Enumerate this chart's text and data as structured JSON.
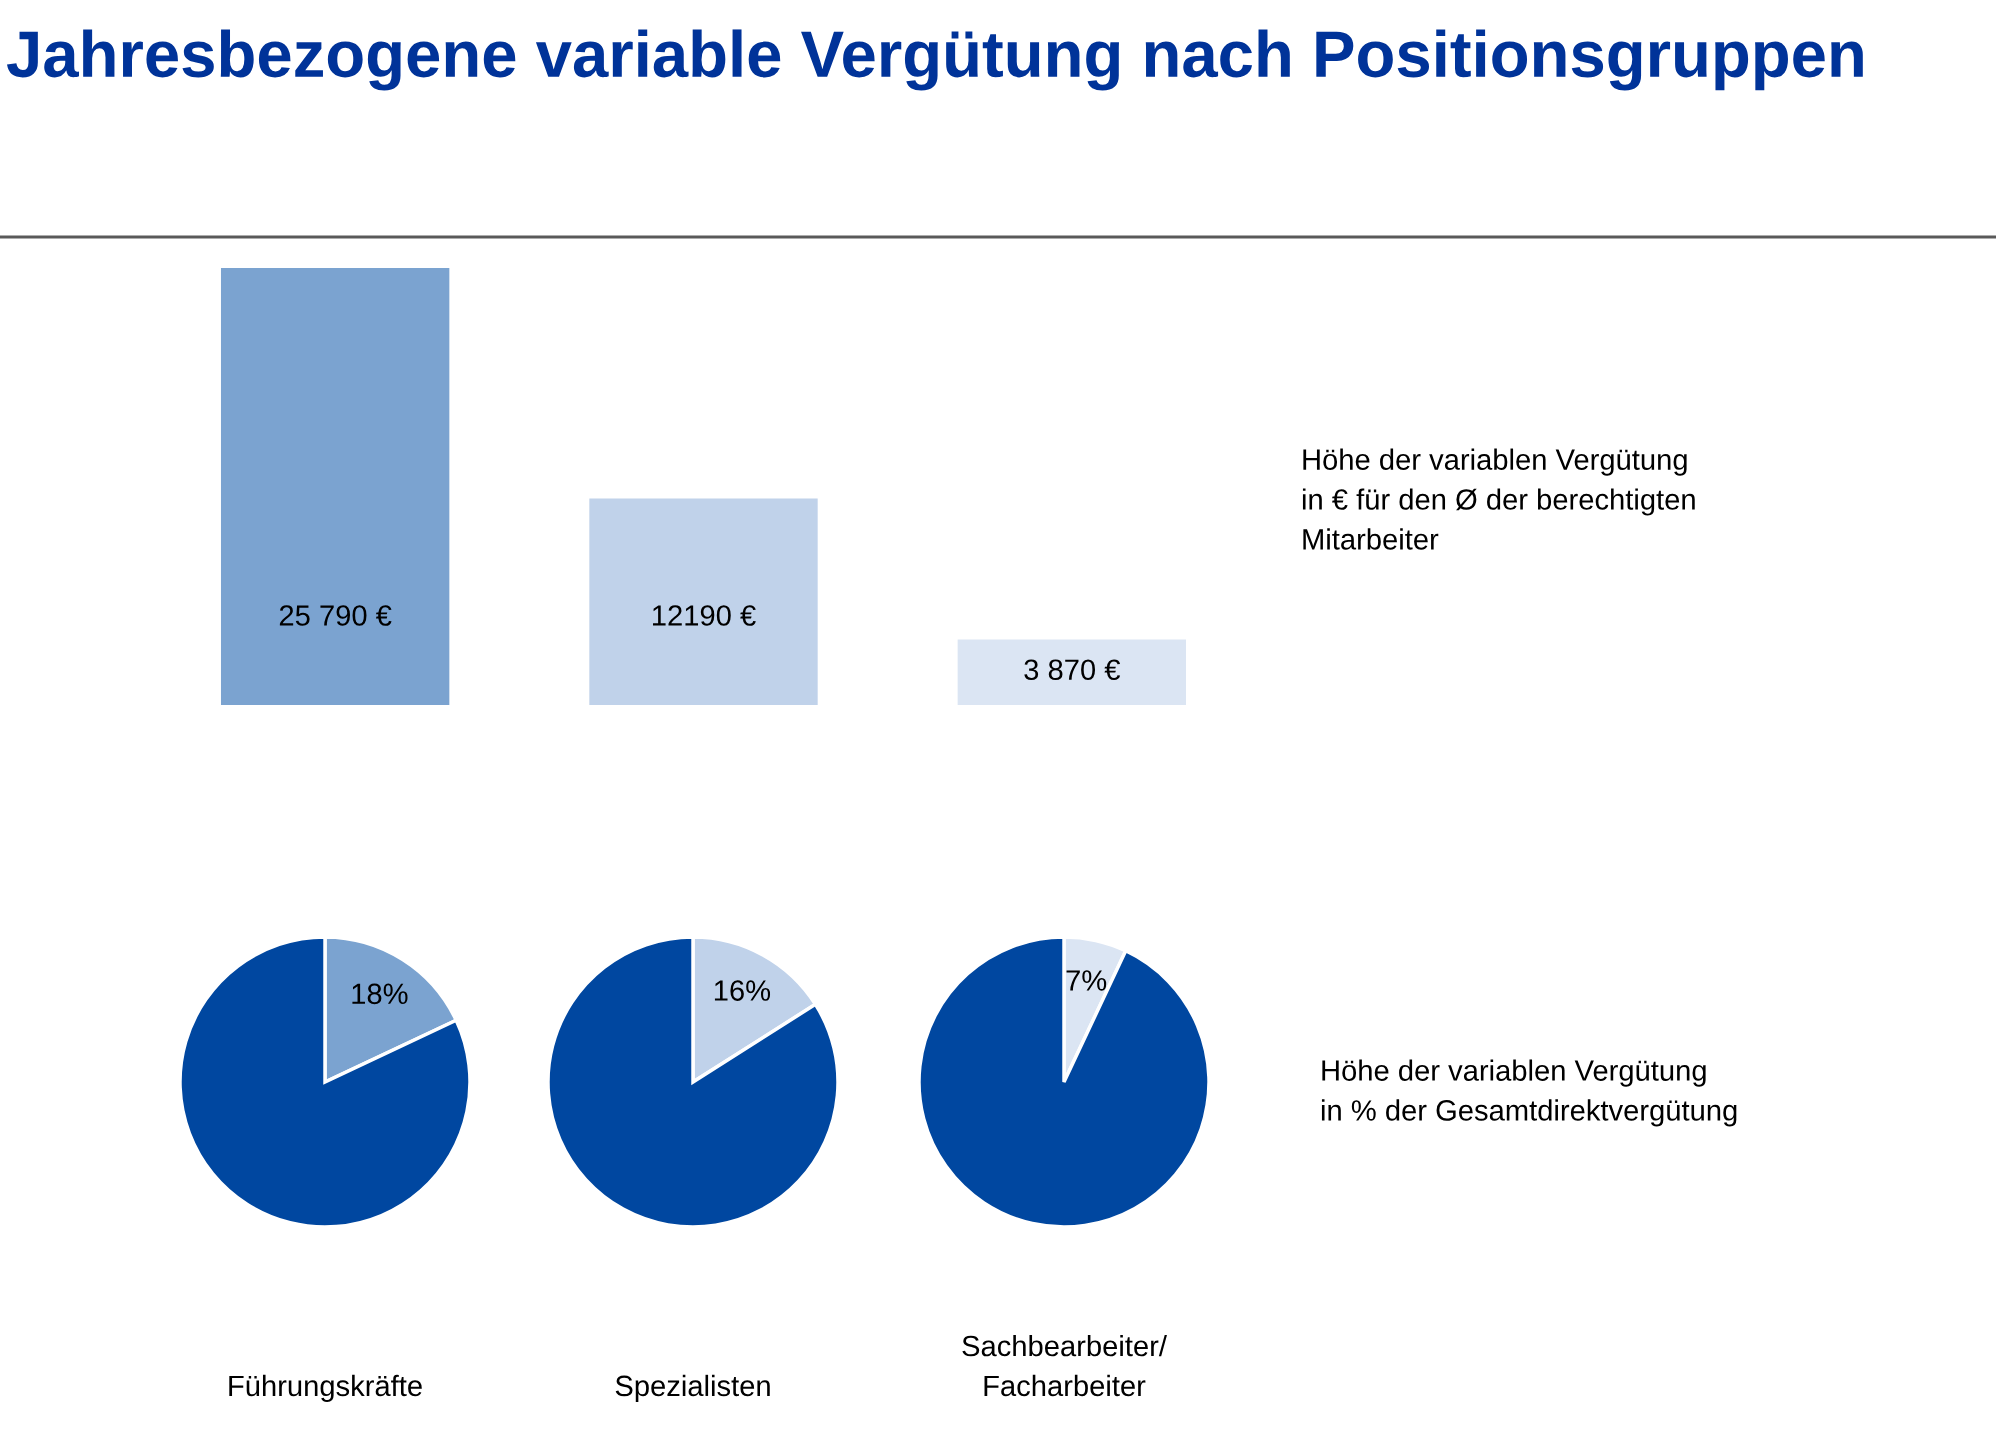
{
  "chart_data": [
    {
      "type": "bar",
      "title": "Jahresbezogene variable Vergütung nach Positionsgruppen",
      "categories": [
        null,
        null,
        null
      ],
      "values": [
        25790,
        12190,
        3870
      ],
      "colors": [
        "#7ba3d0",
        "#c0d2ea",
        "#dbe5f3"
      ],
      "value_labels": [
        "25 790 €",
        "12190 €",
        "3 870 €"
      ],
      "annotations": [
        "Höhe der variablen Vergütung\nin € für den Ø der berechtigten\nMitarbeiter"
      ]
    },
    {
      "type": "pie",
      "title": "Führungskräfte",
      "categories": [
        null,
        null
      ],
      "values": [
        18,
        82
      ],
      "colors": [
        "#7ba3d0",
        "#0047a0"
      ],
      "value_labels": [
        "18%",
        null
      ]
    },
    {
      "type": "pie",
      "title": "Spezialisten",
      "categories": [
        null,
        null
      ],
      "values": [
        16,
        84
      ],
      "colors": [
        "#c0d2ea",
        "#0047a0"
      ],
      "value_labels": [
        "16%",
        null
      ]
    },
    {
      "type": "pie",
      "title": "Sachbearbeiter/\nFacharbeiter",
      "categories": [
        null,
        null
      ],
      "values": [
        7,
        93
      ],
      "colors": [
        "#dbe5f3",
        "#0047a0"
      ],
      "value_labels": [
        "7%",
        null
      ],
      "annotations": [
        "Höhe der variablen Vergütung\nin % der Gesamtdirektvergütung"
      ]
    }
  ]
}
